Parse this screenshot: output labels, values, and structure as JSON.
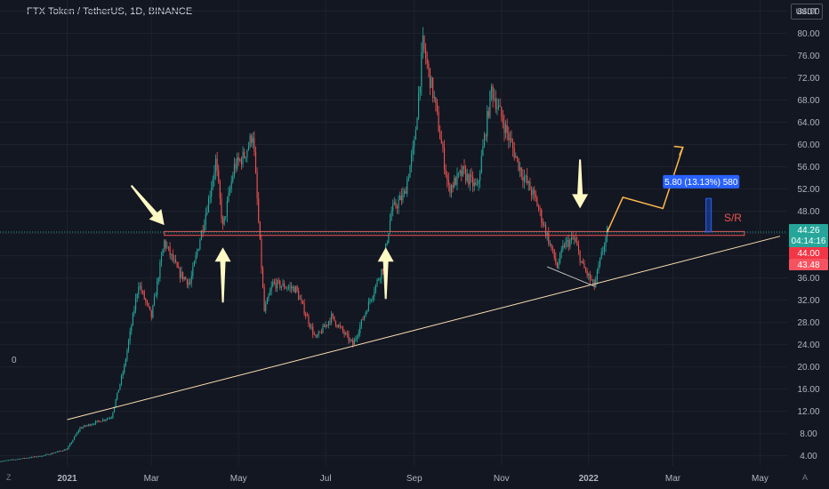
{
  "header": {
    "title": "FTX Token / TetherUS, 1D, BINANCE",
    "currency": "USDT",
    "pane_zero": "0",
    "corner_left": "Z",
    "corner_right": "A"
  },
  "chart_data": {
    "type": "candlestick",
    "title": "FTX Token / TetherUS, 1D, BINANCE",
    "x_axis": {
      "tick_labels": [
        "2021",
        "Mar",
        "May",
        "Jul",
        "Sep",
        "Nov",
        "2022",
        "Mar",
        "May"
      ],
      "range": [
        "2020-11-15",
        "2022-05-20"
      ]
    },
    "y_axis": {
      "tick_labels": [
        "4.00",
        "8.00",
        "12.00",
        "16.00",
        "20.00",
        "24.00",
        "28.00",
        "32.00",
        "36.00",
        "40.00",
        "44.00",
        "48.00",
        "52.00",
        "56.00",
        "60.00",
        "64.00",
        "68.00",
        "72.00",
        "76.00",
        "80.00",
        "84.00"
      ],
      "range": [
        2.5,
        86
      ],
      "scale": "linear",
      "position": "right",
      "unit": "USDT"
    },
    "price_path": [
      [
        "2020-11-15",
        3.0
      ],
      [
        "2020-12-15",
        4.0
      ],
      [
        "2021-01-01",
        5.2
      ],
      [
        "2021-01-10",
        9.0
      ],
      [
        "2021-02-01",
        11.0
      ],
      [
        "2021-02-10",
        20.0
      ],
      [
        "2021-02-20",
        35.0
      ],
      [
        "2021-03-01",
        29.0
      ],
      [
        "2021-03-10",
        42.5
      ],
      [
        "2021-03-20",
        37.0
      ],
      [
        "2021-03-28",
        35.0
      ],
      [
        "2021-04-10",
        50.0
      ],
      [
        "2021-04-15",
        57.0
      ],
      [
        "2021-04-20",
        45.0
      ],
      [
        "2021-04-28",
        56.0
      ],
      [
        "2021-05-05",
        58.0
      ],
      [
        "2021-05-11",
        62.0
      ],
      [
        "2021-05-19",
        30.0
      ],
      [
        "2021-05-25",
        35.0
      ],
      [
        "2021-06-10",
        34.0
      ],
      [
        "2021-06-24",
        25.0
      ],
      [
        "2021-07-05",
        29.0
      ],
      [
        "2021-07-20",
        24.0
      ],
      [
        "2021-08-01",
        32.0
      ],
      [
        "2021-08-10",
        38.0
      ],
      [
        "2021-08-16",
        48.0
      ],
      [
        "2021-08-25",
        51.0
      ],
      [
        "2021-09-01",
        60.0
      ],
      [
        "2021-09-07",
        78.0
      ],
      [
        "2021-09-15",
        68.0
      ],
      [
        "2021-09-25",
        52.0
      ],
      [
        "2021-10-05",
        55.0
      ],
      [
        "2021-10-15",
        52.0
      ],
      [
        "2021-10-25",
        70.0
      ],
      [
        "2021-11-05",
        62.0
      ],
      [
        "2021-11-15",
        55.0
      ],
      [
        "2021-11-25",
        50.0
      ],
      [
        "2021-12-05",
        42.0
      ],
      [
        "2021-12-10",
        38.0
      ],
      [
        "2021-12-15",
        42.0
      ],
      [
        "2021-12-22",
        43.0
      ],
      [
        "2021-12-28",
        38.0
      ],
      [
        "2022-01-05",
        34.5
      ],
      [
        "2022-01-10",
        40.0
      ],
      [
        "2022-01-14",
        44.26
      ]
    ],
    "annotations": {
      "sr_label": "S/R",
      "measure_label": "5.80 (13.13%) 580",
      "sr_level": 44.0,
      "trendline": [
        [
          "2021-01-01",
          10.5
        ],
        [
          "2022-05-15",
          43.5
        ]
      ]
    },
    "price_tags": [
      {
        "label": "44.26",
        "sublabel": "04:14:16",
        "value": 44.26,
        "color": "#26a69a"
      },
      {
        "label": "44.00",
        "value": 44.0,
        "color": "#f23645"
      },
      {
        "label": "43.48",
        "value": 43.48,
        "color": "#f7525f"
      }
    ],
    "colors": {
      "background": "#131722",
      "up": "#26a69a",
      "down": "#ef5350",
      "trendline": "#ffe0b2",
      "sr_line": "#ef5350",
      "projection": "#ffb74d",
      "arrow": "#fff9c4",
      "measure_box": "#2962ff"
    }
  }
}
